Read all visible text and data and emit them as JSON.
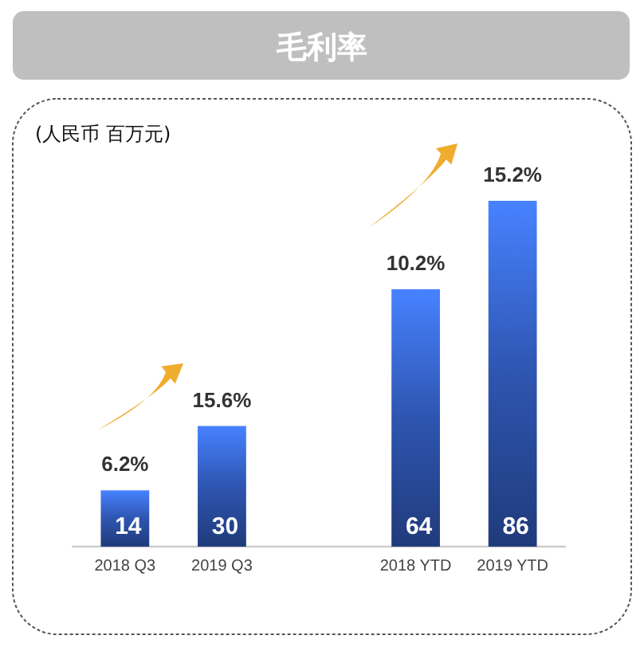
{
  "chart_data": {
    "type": "bar",
    "title": "毛利率",
    "subtitle": "(人民币 百万元)",
    "categories": [
      "2018 Q3",
      "2019 Q3",
      null,
      "2018 YTD",
      "2019 YTD"
    ],
    "values": [
      14,
      30,
      null,
      64,
      86
    ],
    "color": "#2e55b0",
    "data_labels": true,
    "annotations": [
      {
        "text": "6.2%",
        "x": "2018 Q3",
        "y": 14
      },
      {
        "text": "15.6%",
        "x": "2019 Q3",
        "y": 30
      },
      {
        "text": "10.2%",
        "x": "2018 YTD",
        "y": 64
      },
      {
        "text": "15.2%",
        "x": "2019 YTD",
        "y": 86
      }
    ]
  }
}
